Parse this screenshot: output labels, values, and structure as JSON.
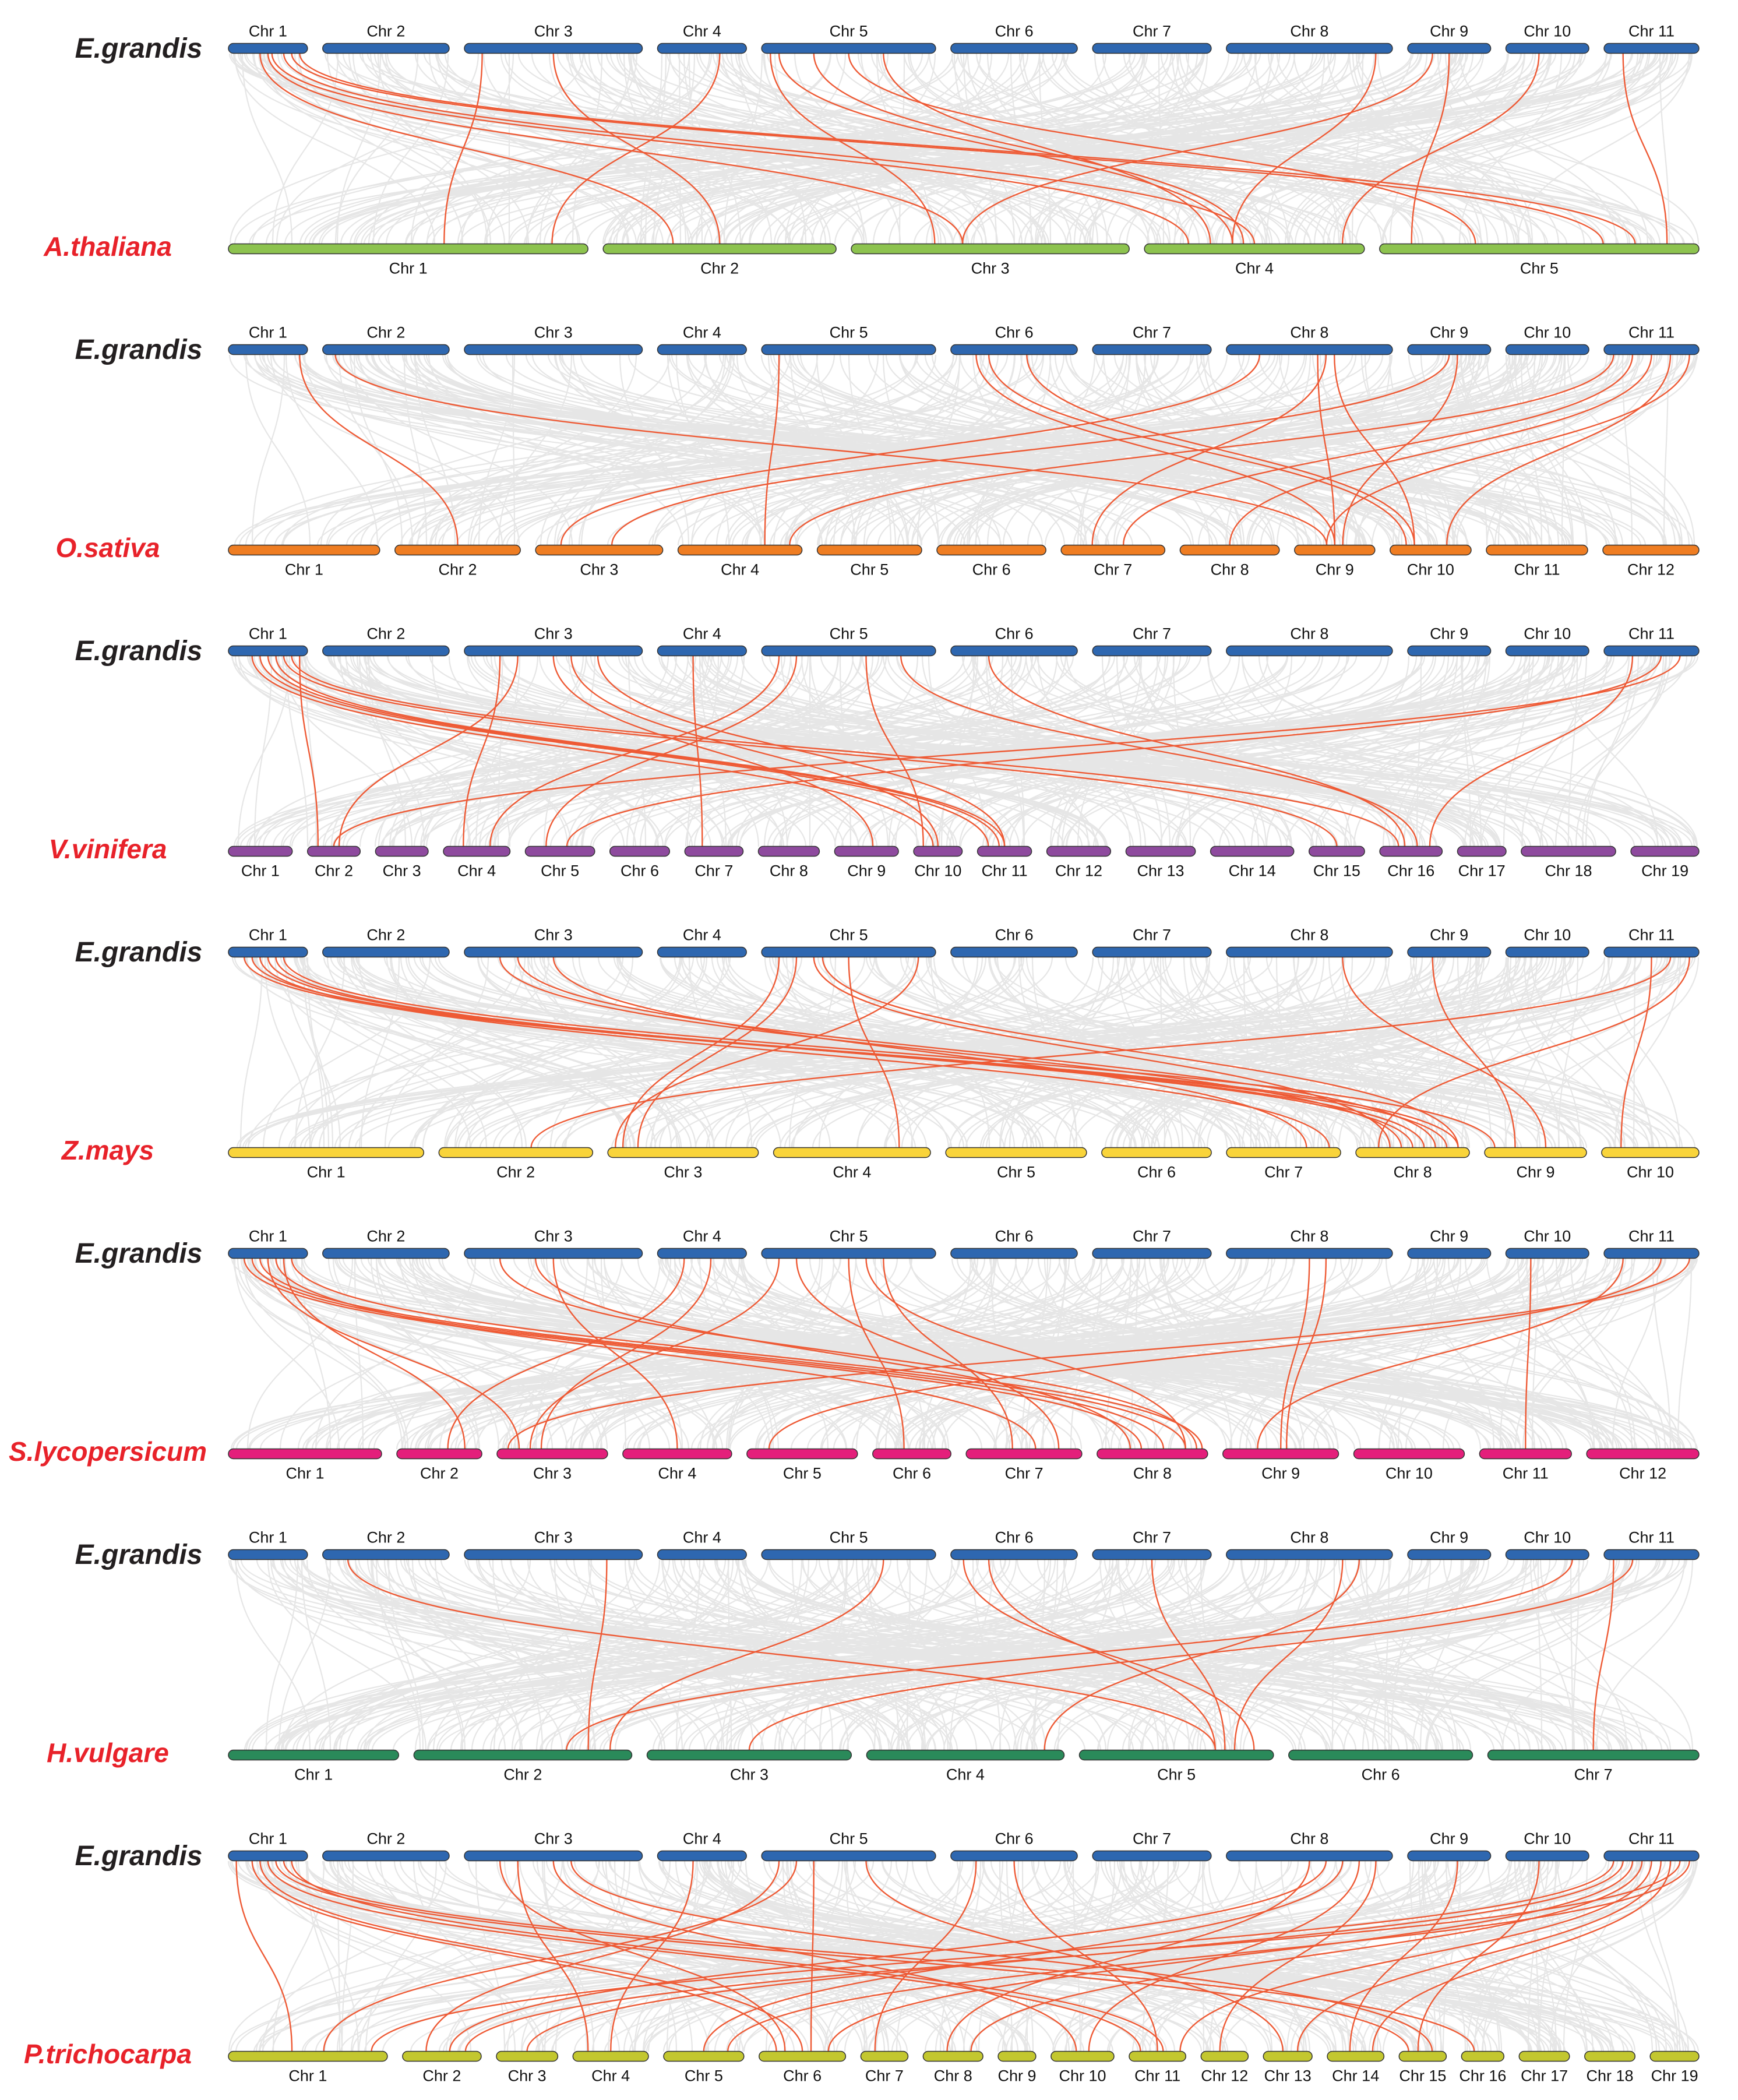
{
  "colors": {
    "reference": "#2e67b0",
    "reference_label": "#231f20",
    "target_label": "#e8222a",
    "background_link": "#e3e3e3",
    "highlight_link": "#ee5a35"
  },
  "reference_species": "E.grandis",
  "reference_chromosomes": [
    "Chr 1",
    "Chr 2",
    "Chr 3",
    "Chr 4",
    "Chr 5",
    "Chr 6",
    "Chr 7",
    "Chr 8",
    "Chr 9",
    "Chr 10",
    "Chr 11"
  ],
  "reference_lengths": [
    40.0,
    64.0,
    90.0,
    45.0,
    88.0,
    64.0,
    60.0,
    84.0,
    42.0,
    42.0,
    48.0
  ],
  "panels": [
    {
      "species": "A.thaliana",
      "color": "#8dc34f",
      "chromosomes": [
        "Chr 1",
        "Chr 2",
        "Chr 3",
        "Chr 4",
        "Chr 5"
      ],
      "lengths": [
        30.4,
        19.7,
        23.5,
        18.6,
        27.0
      ],
      "links": [
        [
          1,
          0.4,
          2,
          0.3
        ],
        [
          1,
          0.5,
          3,
          0.4
        ],
        [
          1,
          0.55,
          4,
          0.2
        ],
        [
          1,
          0.7,
          4,
          0.5
        ],
        [
          1,
          0.8,
          5,
          0.7
        ],
        [
          1,
          0.9,
          5,
          0.8
        ],
        [
          3,
          0.1,
          1,
          0.6
        ],
        [
          3,
          0.5,
          2,
          0.5
        ],
        [
          4,
          0.7,
          1,
          0.9
        ],
        [
          5,
          0.05,
          3,
          0.3
        ],
        [
          5,
          0.1,
          4,
          0.4
        ],
        [
          5,
          0.3,
          4,
          0.45
        ],
        [
          5,
          0.5,
          5,
          0.3
        ],
        [
          5,
          0.7,
          4,
          0.3
        ],
        [
          8,
          0.9,
          4,
          0.4
        ],
        [
          9,
          0.3,
          3,
          0.4
        ],
        [
          9,
          0.5,
          5,
          0.1
        ],
        [
          10,
          0.4,
          4,
          0.9
        ],
        [
          11,
          0.2,
          5,
          0.9
        ]
      ]
    },
    {
      "species": "O.sativa",
      "color": "#ef7d22",
      "chromosomes": [
        "Chr 1",
        "Chr 2",
        "Chr 3",
        "Chr 4",
        "Chr 5",
        "Chr 6",
        "Chr 7",
        "Chr 8",
        "Chr 9",
        "Chr 10",
        "Chr 11",
        "Chr 12"
      ],
      "lengths": [
        43.3,
        35.9,
        36.4,
        35.5,
        29.9,
        31.2,
        29.7,
        28.4,
        23.0,
        23.2,
        29.0,
        27.5
      ],
      "links": [
        [
          1,
          0.9,
          2,
          0.5
        ],
        [
          2,
          0.1,
          9,
          0.4
        ],
        [
          5,
          0.1,
          4,
          0.7
        ],
        [
          6,
          0.2,
          9,
          0.5
        ],
        [
          6,
          0.3,
          10,
          0.2
        ],
        [
          6,
          0.6,
          10,
          0.3
        ],
        [
          8,
          0.2,
          3,
          0.2
        ],
        [
          8,
          0.55,
          9,
          0.5
        ],
        [
          8,
          0.6,
          7,
          0.3
        ],
        [
          8,
          0.65,
          10,
          0.3
        ],
        [
          9,
          0.5,
          3,
          0.6
        ],
        [
          9,
          0.6,
          9,
          0.6
        ],
        [
          11,
          0.1,
          4,
          0.9
        ],
        [
          11,
          0.3,
          7,
          0.6
        ],
        [
          11,
          0.5,
          8,
          0.5
        ],
        [
          11,
          0.7,
          10,
          0.7
        ],
        [
          11,
          0.9,
          9,
          0.4
        ]
      ]
    },
    {
      "species": "V.vinifera",
      "color": "#8e4a9e",
      "chromosomes": [
        "Chr 1",
        "Chr 2",
        "Chr 3",
        "Chr 4",
        "Chr 5",
        "Chr 6",
        "Chr 7",
        "Chr 8",
        "Chr 9",
        "Chr 10",
        "Chr 11",
        "Chr 12",
        "Chr 13",
        "Chr 14",
        "Chr 15",
        "Chr 16",
        "Chr 17",
        "Chr 18",
        "Chr 19"
      ],
      "lengths": [
        23.0,
        19.0,
        19.0,
        24.0,
        25.0,
        21.5,
        21.0,
        22.0,
        23.0,
        17.5,
        19.5,
        23.0,
        25.0,
        30.0,
        20.0,
        22.5,
        17.5,
        34.0,
        24.5
      ],
      "links": [
        [
          1,
          0.9,
          2,
          0.2
        ],
        [
          1,
          0.3,
          10,
          0.4
        ],
        [
          1,
          0.4,
          11,
          0.2
        ],
        [
          1,
          0.5,
          11,
          0.4
        ],
        [
          1,
          0.6,
          11,
          0.5
        ],
        [
          1,
          0.7,
          15,
          0.5
        ],
        [
          1,
          0.8,
          16,
          0.3
        ],
        [
          3,
          0.2,
          4,
          0.3
        ],
        [
          3,
          0.3,
          2,
          0.6
        ],
        [
          3,
          0.5,
          9,
          0.6
        ],
        [
          3,
          0.6,
          10,
          0.5
        ],
        [
          3,
          0.75,
          11,
          0.5
        ],
        [
          4,
          0.4,
          7,
          0.3
        ],
        [
          5,
          0.1,
          4,
          0.7
        ],
        [
          5,
          0.2,
          5,
          0.3
        ],
        [
          5,
          0.6,
          10,
          0.2
        ],
        [
          5,
          0.8,
          16,
          0.6
        ],
        [
          6,
          0.3,
          16,
          0.4
        ],
        [
          11,
          0.3,
          16,
          0.8
        ],
        [
          11,
          0.6,
          5,
          0.6
        ],
        [
          11,
          0.8,
          2,
          0.5
        ]
      ]
    },
    {
      "species": "Z.mays",
      "color": "#f9d43a",
      "chromosomes": [
        "Chr 1",
        "Chr 2",
        "Chr 3",
        "Chr 4",
        "Chr 5",
        "Chr 6",
        "Chr 7",
        "Chr 8",
        "Chr 9",
        "Chr 10"
      ],
      "lengths": [
        301.0,
        237.0,
        232.0,
        242.0,
        217.0,
        169.0,
        176.0,
        175.0,
        157.0,
        150.0
      ],
      "links": [
        [
          1,
          0.2,
          8,
          0.8
        ],
        [
          1,
          0.3,
          8,
          0.9
        ],
        [
          1,
          0.4,
          7,
          0.9
        ],
        [
          1,
          0.5,
          8,
          0.6
        ],
        [
          1,
          0.6,
          8,
          0.5
        ],
        [
          1,
          0.7,
          9,
          0.1
        ],
        [
          3,
          0.2,
          8,
          0.4
        ],
        [
          3,
          0.3,
          8,
          0.7
        ],
        [
          3,
          0.5,
          7,
          0.7
        ],
        [
          5,
          0.1,
          3,
          0.1
        ],
        [
          5,
          0.2,
          3,
          0.2
        ],
        [
          5,
          0.3,
          8,
          0.3
        ],
        [
          5,
          0.35,
          8,
          0.9
        ],
        [
          5,
          0.5,
          4,
          0.8
        ],
        [
          5,
          0.9,
          3,
          0.05
        ],
        [
          8,
          0.7,
          9,
          0.6
        ],
        [
          9,
          0.3,
          9,
          0.3
        ],
        [
          11,
          0.5,
          10,
          0.2
        ],
        [
          11,
          0.7,
          2,
          0.6
        ],
        [
          11,
          0.9,
          8,
          0.2
        ]
      ]
    },
    {
      "species": "S.lycopersicum",
      "color": "#e41f7b",
      "chromosomes": [
        "Chr 1",
        "Chr 2",
        "Chr 3",
        "Chr 4",
        "Chr 5",
        "Chr 6",
        "Chr 7",
        "Chr 8",
        "Chr 9",
        "Chr 10",
        "Chr 11",
        "Chr 12"
      ],
      "lengths": [
        90.0,
        50.0,
        65.0,
        64.0,
        65.0,
        46.0,
        68.0,
        65.0,
        68.0,
        65.0,
        54.0,
        66.0
      ],
      "links": [
        [
          1,
          0.2,
          8,
          0.4
        ],
        [
          1,
          0.3,
          8,
          0.6
        ],
        [
          1,
          0.4,
          8,
          0.8
        ],
        [
          1,
          0.5,
          3,
          0.2
        ],
        [
          1,
          0.6,
          7,
          0.6
        ],
        [
          1,
          0.7,
          2,
          0.8
        ],
        [
          1,
          0.8,
          8,
          0.95
        ],
        [
          3,
          0.2,
          8,
          0.9
        ],
        [
          3,
          0.4,
          8,
          0.3
        ],
        [
          3,
          0.5,
          4,
          0.5
        ],
        [
          4,
          0.3,
          2,
          0.6
        ],
        [
          4,
          0.6,
          3,
          0.4
        ],
        [
          5,
          0.1,
          3,
          0.3
        ],
        [
          5,
          0.2,
          7,
          0.8
        ],
        [
          5,
          0.5,
          6,
          0.4
        ],
        [
          5,
          0.6,
          8,
          0.8
        ],
        [
          5,
          0.7,
          7,
          0.4
        ],
        [
          8,
          0.5,
          9,
          0.5
        ],
        [
          8,
          0.6,
          9,
          0.55
        ],
        [
          10,
          0.3,
          11,
          0.5
        ],
        [
          11,
          0.2,
          9,
          0.3
        ],
        [
          11,
          0.6,
          5,
          0.2
        ],
        [
          11,
          0.9,
          3,
          0.1
        ]
      ]
    },
    {
      "species": "H.vulgare",
      "color": "#2a8a5a",
      "chromosomes": [
        "Chr 1",
        "Chr 2",
        "Chr 3",
        "Chr 4",
        "Chr 5",
        "Chr 6",
        "Chr 7"
      ],
      "lengths": [
        25.0,
        32.0,
        30.0,
        29.0,
        28.5,
        27.0,
        31.0
      ],
      "links": [
        [
          2,
          0.2,
          5,
          0.7
        ],
        [
          3,
          0.8,
          2,
          0.8
        ],
        [
          5,
          0.7,
          2,
          0.9
        ],
        [
          6,
          0.1,
          5,
          0.9
        ],
        [
          6,
          0.3,
          5,
          0.7
        ],
        [
          7,
          0.5,
          5,
          0.75
        ],
        [
          8,
          0.7,
          5,
          0.8
        ],
        [
          8,
          0.8,
          4,
          0.9
        ],
        [
          10,
          0.8,
          2,
          0.7
        ],
        [
          11,
          0.1,
          7,
          0.5
        ],
        [
          11,
          0.3,
          3,
          0.5
        ]
      ]
    },
    {
      "species": "P.trichocarpa",
      "color": "#c3c72f",
      "chromosomes": [
        "Chr 1",
        "Chr 2",
        "Chr 3",
        "Chr 4",
        "Chr 5",
        "Chr 6",
        "Chr 7",
        "Chr 8",
        "Chr 9",
        "Chr 10",
        "Chr 11",
        "Chr 12",
        "Chr 13",
        "Chr 14",
        "Chr 15",
        "Chr 16",
        "Chr 17",
        "Chr 18",
        "Chr 19"
      ],
      "lengths": [
        50.5,
        25.0,
        19.5,
        24.0,
        25.5,
        27.5,
        15.0,
        19.0,
        12.0,
        20.0,
        18.0,
        15.0,
        15.5,
        18.0,
        15.0,
        13.5,
        16.0,
        16.0,
        15.5
      ],
      "links": [
        [
          1,
          0.1,
          1,
          0.4
        ],
        [
          1,
          0.3,
          6,
          0.2
        ],
        [
          1,
          0.4,
          6,
          0.5
        ],
        [
          1,
          0.5,
          11,
          0.2
        ],
        [
          1,
          0.6,
          15,
          0.2
        ],
        [
          1,
          0.7,
          16,
          0.3
        ],
        [
          1,
          0.8,
          11,
          0.6
        ],
        [
          3,
          0.2,
          6,
          0.3
        ],
        [
          3,
          0.3,
          4,
          0.2
        ],
        [
          3,
          0.5,
          10,
          0.4
        ],
        [
          3,
          0.6,
          15,
          0.7
        ],
        [
          4,
          0.4,
          4,
          0.5
        ],
        [
          5,
          0.1,
          2,
          0.3
        ],
        [
          5,
          0.2,
          1,
          0.6
        ],
        [
          5,
          0.3,
          6,
          0.6
        ],
        [
          5,
          0.6,
          13,
          0.4
        ],
        [
          6,
          0.2,
          7,
          0.3
        ],
        [
          6,
          0.5,
          11,
          0.5
        ],
        [
          8,
          0.5,
          8,
          0.4
        ],
        [
          8,
          0.6,
          2,
          0.6
        ],
        [
          8,
          0.7,
          5,
          0.5
        ],
        [
          8,
          0.8,
          10,
          0.6
        ],
        [
          8,
          0.9,
          12,
          0.4
        ],
        [
          9,
          0.6,
          14,
          0.4
        ],
        [
          10,
          0.4,
          15,
          0.4
        ],
        [
          11,
          0.1,
          1,
          0.9
        ],
        [
          11,
          0.2,
          3,
          0.5
        ],
        [
          11,
          0.3,
          6,
          0.8
        ],
        [
          11,
          0.4,
          8,
          0.8
        ],
        [
          11,
          0.5,
          11,
          0.9
        ],
        [
          11,
          0.6,
          13,
          0.7
        ],
        [
          11,
          0.7,
          14,
          0.8
        ],
        [
          11,
          0.8,
          2,
          0.8
        ],
        [
          11,
          0.9,
          5,
          0.8
        ]
      ]
    }
  ]
}
